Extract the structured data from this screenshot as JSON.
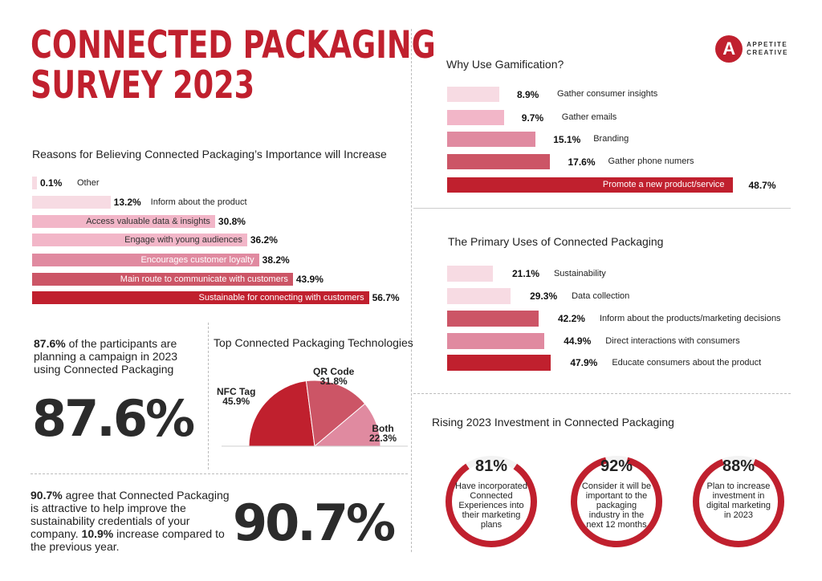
{
  "title": {
    "line1": "CONNECTED PACKAGING",
    "line2": "SURVEY 2023"
  },
  "logo": {
    "letter": "A",
    "line1": "APPETITE",
    "line2": "CREATIVE"
  },
  "colors": {
    "red": "#c0202e",
    "dark_pink": "#cc5566",
    "mid_pink": "#e08aa0",
    "light_pink": "#f2b6c8",
    "pale_pink": "#f7dbe3"
  },
  "chart_data": [
    {
      "id": "reasons",
      "type": "bar",
      "orientation": "horizontal",
      "title": "Reasons for Believing Connected Packaging’s Importance will Increase",
      "categories": [
        "Other",
        "Inform about the product",
        "Access valuable data & insights",
        "Engage with young audiences",
        "Encourages customer loyalty",
        "Main route to communicate with customers",
        "Sustainable for connecting with customers"
      ],
      "values": [
        0.1,
        13.2,
        30.8,
        36.2,
        38.2,
        43.9,
        56.7
      ],
      "value_labels": [
        "0.1%",
        "13.2%",
        "30.8%",
        "36.2%",
        "38.2%",
        "43.9%",
        "56.7%"
      ]
    },
    {
      "id": "gamification",
      "type": "bar",
      "orientation": "horizontal",
      "title": "Why Use Gamification?",
      "categories": [
        "Gather consumer insights",
        "Gather emails",
        "Branding",
        "Gather phone numers",
        "Promote a new product/service"
      ],
      "values": [
        8.9,
        9.7,
        15.1,
        17.6,
        48.7
      ],
      "value_labels": [
        "8.9%",
        "9.7%",
        "15.1%",
        "17.6%",
        "48.7%"
      ]
    },
    {
      "id": "uses",
      "type": "bar",
      "orientation": "horizontal",
      "title": "The Primary Uses of Connected Packaging",
      "categories": [
        "Sustainability",
        "Data collection",
        "Inform about the products/marketing decisions",
        "Direct interactions with consumers",
        "Educate consumers about the product"
      ],
      "values": [
        21.1,
        29.3,
        42.2,
        44.9,
        47.9
      ],
      "value_labels": [
        "21.1%",
        "29.3%",
        "42.2%",
        "44.9%",
        "47.9%"
      ]
    },
    {
      "id": "technologies",
      "type": "pie",
      "title": "Top Connected Packaging Technologies",
      "categories": [
        "NFC Tag",
        "QR Code",
        "Both"
      ],
      "values": [
        45.9,
        31.8,
        22.3
      ],
      "value_labels": [
        "45.9%",
        "31.8%",
        "22.3%"
      ]
    },
    {
      "id": "investment",
      "type": "pie",
      "title": "Rising 2023 Investment in Connected Packaging",
      "categories": [
        "Have incorporated Connected Experiences into their marketing plans",
        "Consider it will be important to the packaging industry in the next 12 months",
        "Plan to increase investment in digital marketing in 2023"
      ],
      "values": [
        81,
        92,
        88
      ],
      "value_labels": [
        "81%",
        "92%",
        "88%"
      ]
    }
  ],
  "campaign": {
    "pct": "87.6%",
    "text": " of the participants are planning a campaign in 2023 using Connected Packaging",
    "big": "87.6%"
  },
  "agree": {
    "pct": "90.7%",
    "text1": " agree that Connected Packaging is attractive to help improve the sustainability credentials of your company. ",
    "pct2": "10.9%",
    "text2": " increase compared to the previous year.",
    "big": "90.7%"
  }
}
